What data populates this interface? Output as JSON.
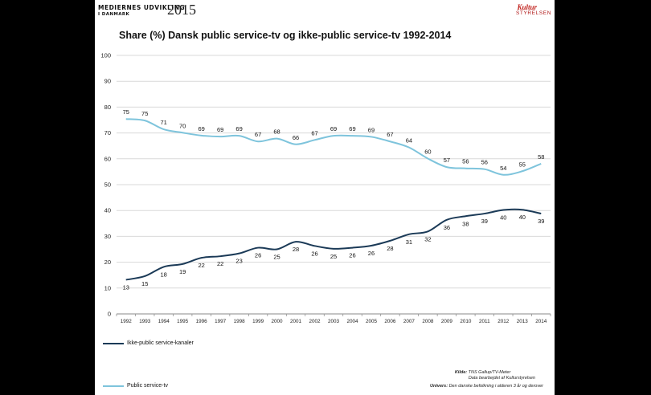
{
  "header": {
    "brand_line1": "MEDIERNES UDVIKLING",
    "brand_line2": "I DANMARK",
    "brand_year": "2015",
    "logo_script": "Kultur",
    "logo_text": "STYRELSEN"
  },
  "colors": {
    "ikke": "#1b3a57",
    "public": "#7ec4dc",
    "grid": "#d9d9d9",
    "logo": "#b01616"
  },
  "chart_data": {
    "type": "line",
    "title": "Share (%) Dansk public service-tv og ikke-public service-tv 1992-2014",
    "xlabel": "",
    "ylabel": "",
    "ylim": [
      0,
      100
    ],
    "yticks": [
      0,
      10,
      20,
      30,
      40,
      50,
      60,
      70,
      80,
      90,
      100
    ],
    "grid": true,
    "legend": "bottom-left",
    "x": [
      "1992",
      "1993",
      "1994",
      "1995",
      "1996",
      "1997",
      "1998",
      "1999",
      "2000",
      "2001",
      "2002",
      "2003",
      "2004",
      "2005",
      "2006",
      "2007",
      "2008",
      "2009",
      "2010",
      "2011",
      "2012",
      "2013",
      "2014"
    ],
    "series": [
      {
        "name": "Ikke-public service-kanaler",
        "color": "#1b3a57",
        "values": [
          13.2,
          14.6,
          18.2,
          19.3,
          21.7,
          22.3,
          23.4,
          25.6,
          25.0,
          27.9,
          26.3,
          25.2,
          25.6,
          26.4,
          28.3,
          30.8,
          31.9,
          36.4,
          37.8,
          38.8,
          40.2,
          40.3,
          38.8
        ],
        "labels": [
          "13",
          "15",
          "18",
          "19",
          "22",
          "22",
          "23",
          "26",
          "25",
          "28",
          "26",
          "25",
          "26",
          "26",
          "28",
          "31",
          "32",
          "36",
          "38",
          "39",
          "40",
          "40",
          "39"
        ]
      },
      {
        "name": "Public service-tv",
        "color": "#7ec4dc",
        "values": [
          75.4,
          74.8,
          71.4,
          70.1,
          69.0,
          68.6,
          68.9,
          66.7,
          67.8,
          65.6,
          67.3,
          68.9,
          68.9,
          68.5,
          66.7,
          64.4,
          60.1,
          56.8,
          56.3,
          56.0,
          53.8,
          55.2,
          58.1
        ],
        "labels": [
          "75",
          "75",
          "71",
          "70",
          "69",
          "69",
          "69",
          "67",
          "68",
          "66",
          "67",
          "69",
          "69",
          "69",
          "67",
          "64",
          "60",
          "57",
          "56",
          "56",
          "54",
          "55",
          "58"
        ]
      }
    ]
  },
  "source": {
    "kilde_label": "Kilde:",
    "kilde_value": "TNS Gallup/TV-Meter",
    "kilde_line2": "Data bearbejdet af Kulturstyrelsen",
    "univers_label": "Univers:",
    "univers_value": "Den danske befolkning i alderen 3 år og derover"
  }
}
